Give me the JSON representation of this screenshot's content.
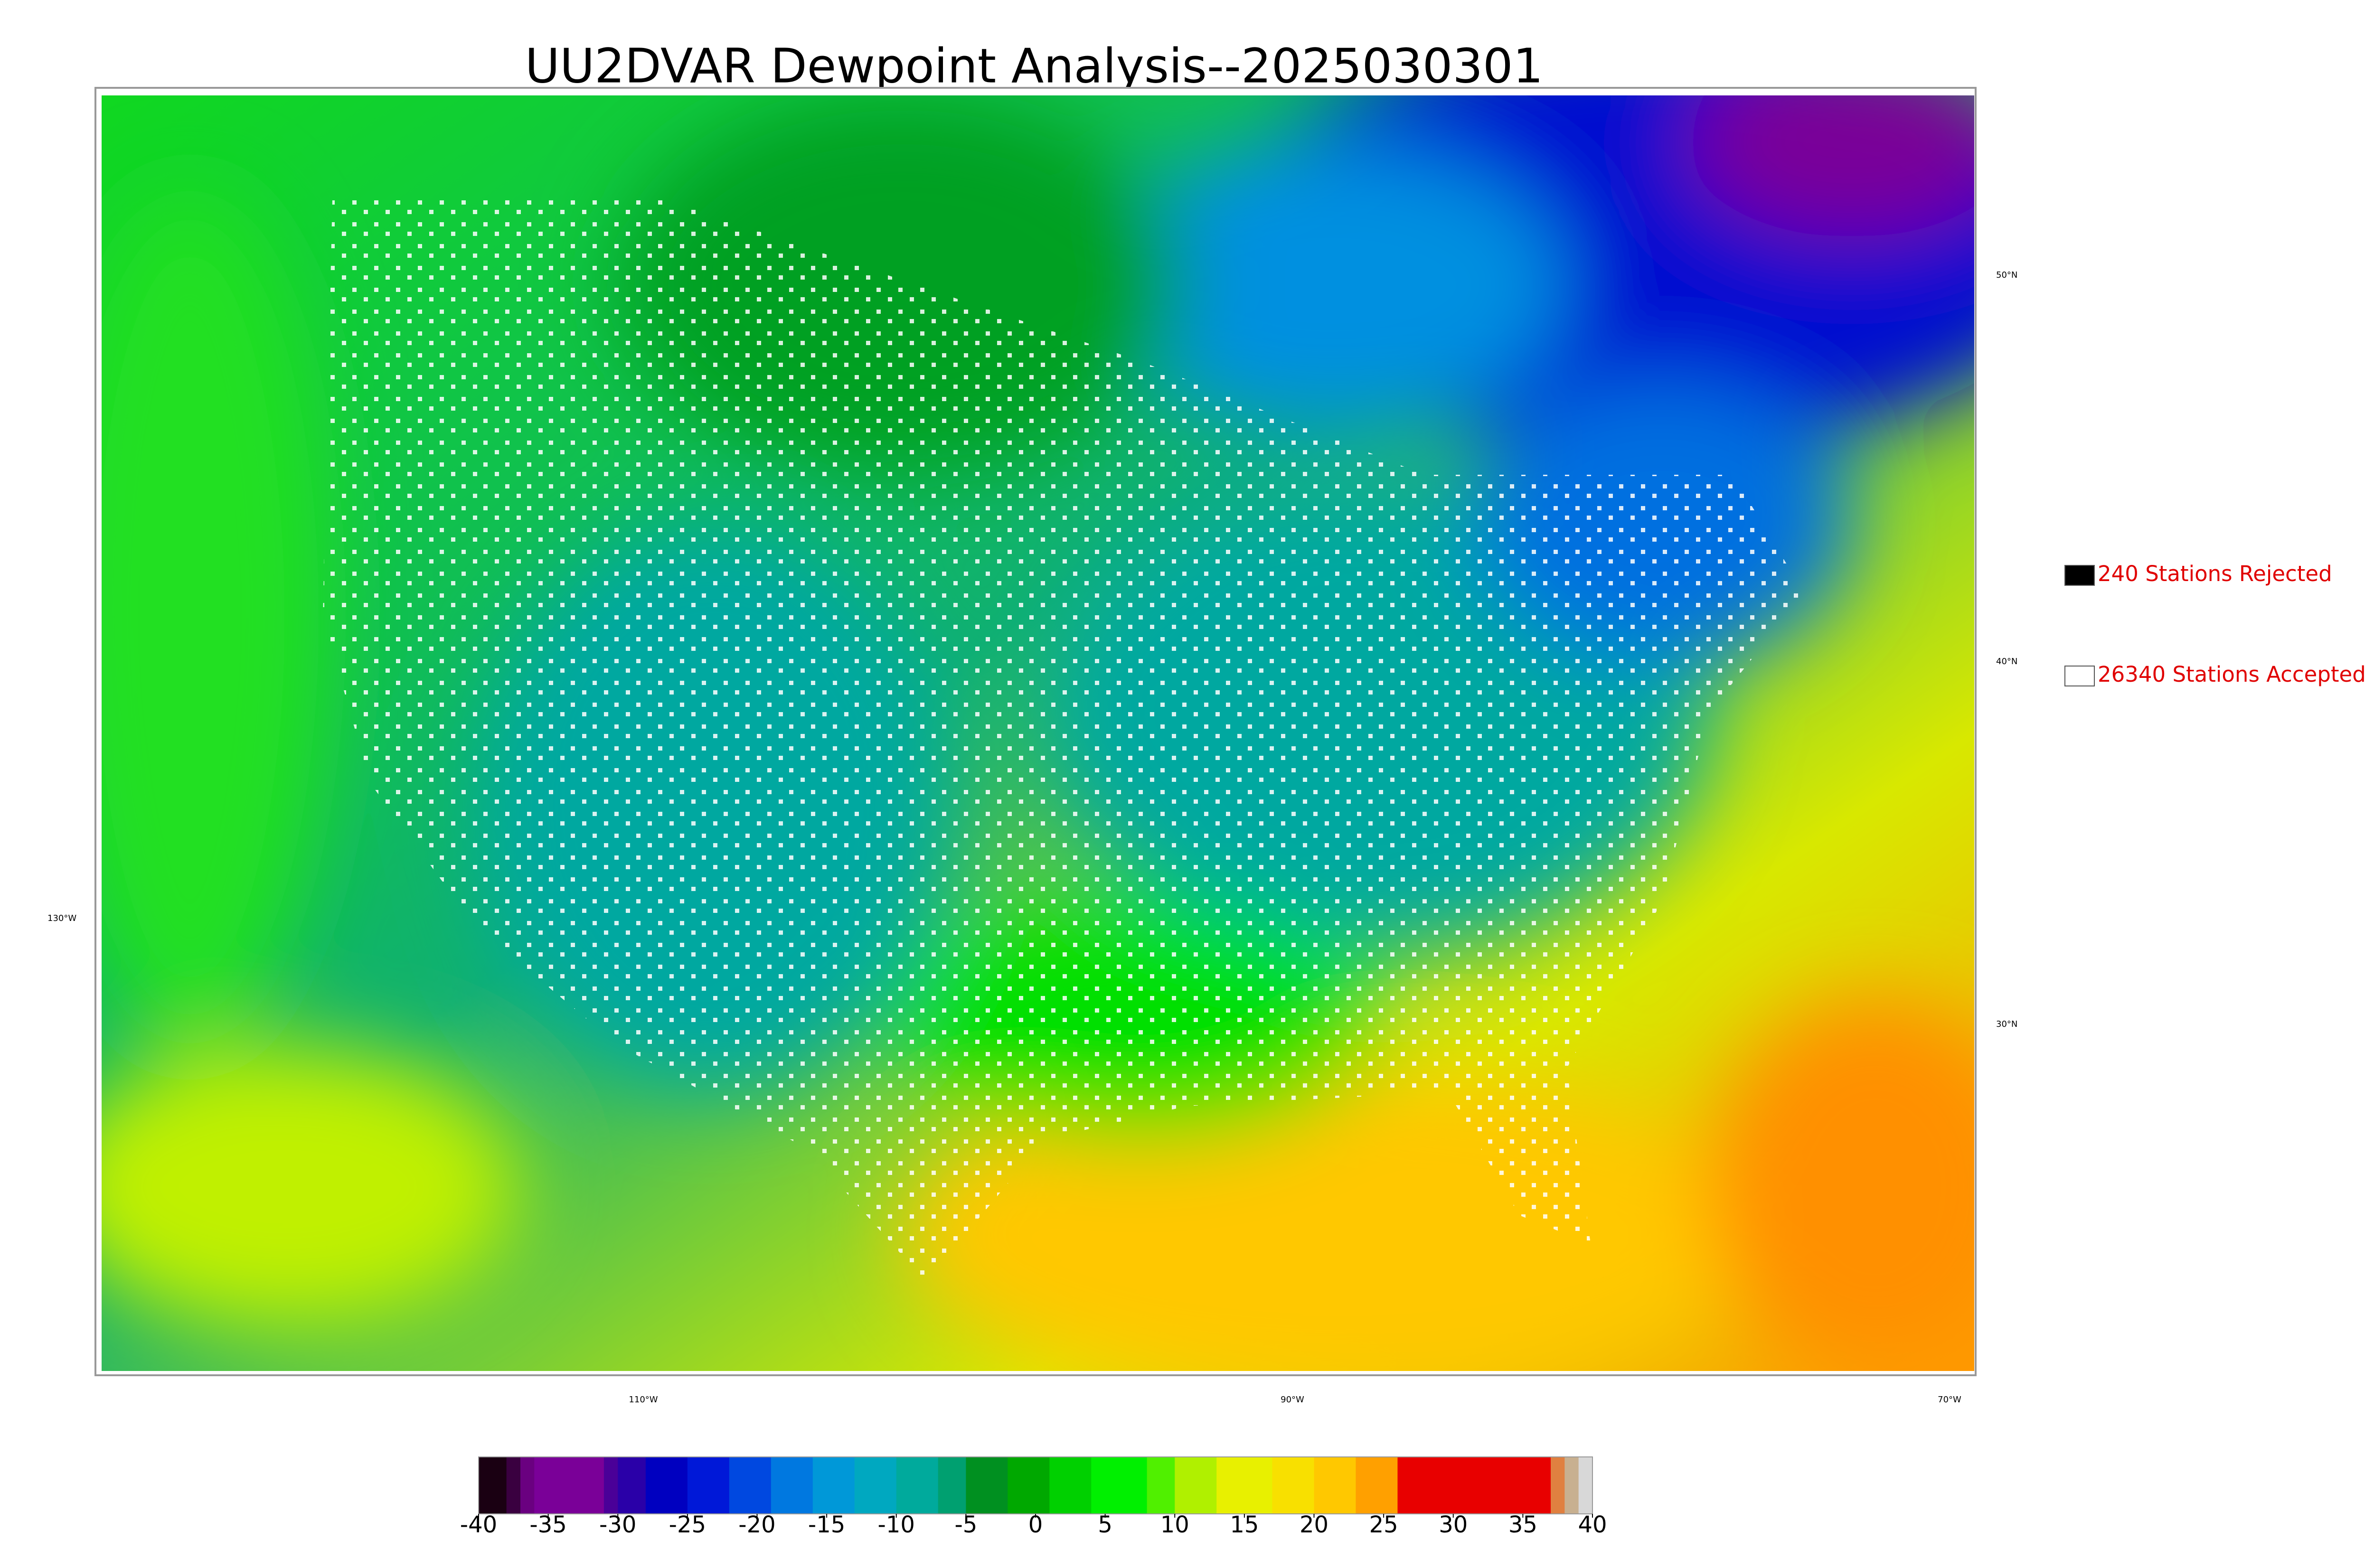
{
  "title": "UU2DVAR Dewpoint Analysis--2025030301",
  "legend": [
    {
      "label": "240 Stations Rejected",
      "color": "#000000"
    },
    {
      "label": "26340 Stations Accepted",
      "color": "#ffffff"
    }
  ],
  "graticule": {
    "lat_labels": [
      "50°N",
      "40°N",
      "30°N"
    ],
    "lon_labels": [
      "130°W",
      "110°W",
      "90°W",
      "70°W"
    ]
  },
  "colorbar": {
    "lim": [
      -40,
      40
    ],
    "ticks": [
      -40,
      -35,
      -30,
      -25,
      -20,
      -15,
      -10,
      -5,
      0,
      5,
      10,
      15,
      20,
      25,
      30,
      35,
      40
    ],
    "segments": [
      {
        "value": -40,
        "color": "#1a0012"
      },
      {
        "value": -38,
        "color": "#3a0040"
      },
      {
        "value": -37,
        "color": "#6a0080"
      },
      {
        "value": -36,
        "color": "#7a0098"
      },
      {
        "value": -31,
        "color": "#4a0098"
      },
      {
        "value": -30,
        "color": "#2a00a8"
      },
      {
        "value": -28,
        "color": "#0000c0"
      },
      {
        "value": -25,
        "color": "#0018d8"
      },
      {
        "value": -22,
        "color": "#0048e0"
      },
      {
        "value": -19,
        "color": "#0078e0"
      },
      {
        "value": -16,
        "color": "#0098d8"
      },
      {
        "value": -13,
        "color": "#00a8c0"
      },
      {
        "value": -10,
        "color": "#00aa9c"
      },
      {
        "value": -7,
        "color": "#00a070"
      },
      {
        "value": -5,
        "color": "#009020"
      },
      {
        "value": -2,
        "color": "#00a800"
      },
      {
        "value": 1,
        "color": "#00d000"
      },
      {
        "value": 4,
        "color": "#00f000"
      },
      {
        "value": 8,
        "color": "#50f000"
      },
      {
        "value": 10,
        "color": "#b0f000"
      },
      {
        "value": 13,
        "color": "#e8f000"
      },
      {
        "value": 17,
        "color": "#f8e000"
      },
      {
        "value": 20,
        "color": "#ffc800"
      },
      {
        "value": 23,
        "color": "#ffa000"
      },
      {
        "value": 26,
        "color": "#e80000"
      },
      {
        "value": 37,
        "color": "#e08040"
      },
      {
        "value": 38,
        "color": "#c8b090"
      },
      {
        "value": 39,
        "color": "#d8d8d8"
      }
    ]
  }
}
